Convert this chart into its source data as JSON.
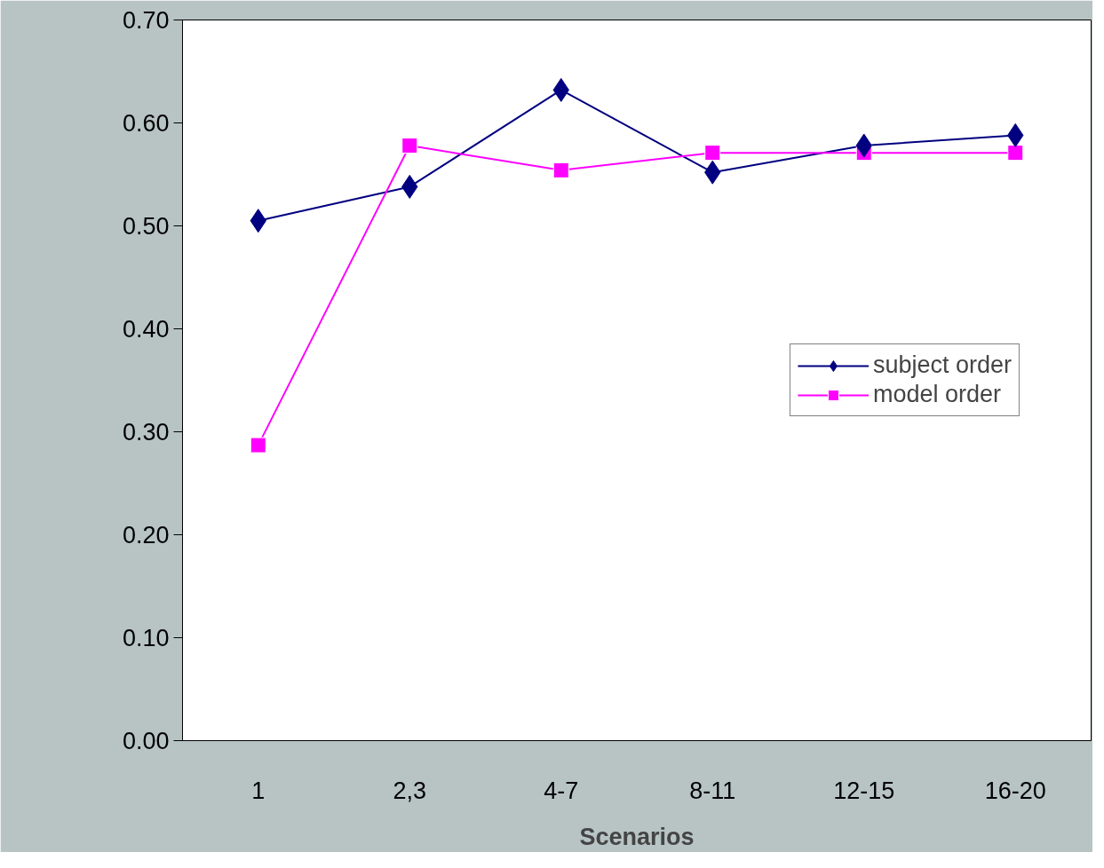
{
  "chart_data": {
    "type": "line",
    "xlabel": "Scenarios",
    "categories": [
      "1",
      "2,3",
      "4-7",
      "8-11",
      "12-15",
      "16-20"
    ],
    "series": [
      {
        "name": "subject order",
        "color": "#000080",
        "marker": "diamond",
        "values": [
          0.505,
          0.538,
          0.632,
          0.552,
          0.578,
          0.588
        ]
      },
      {
        "name": "model order",
        "color": "#ff00ff",
        "marker": "square",
        "values": [
          0.287,
          0.578,
          0.554,
          0.571,
          0.571,
          0.571
        ]
      }
    ],
    "ylim": [
      0,
      0.7
    ],
    "yticks": [
      {
        "value": 0,
        "label": "0.00"
      },
      {
        "value": 0.1,
        "label": "0.10"
      },
      {
        "value": 0.2,
        "label": "0.20"
      },
      {
        "value": 0.3,
        "label": "0.30"
      },
      {
        "value": 0.4,
        "label": "0.40"
      },
      {
        "value": 0.5,
        "label": "0.50"
      },
      {
        "value": 0.6,
        "label": "0.60"
      },
      {
        "value": 0.7,
        "label": "0.70"
      }
    ],
    "grid": false,
    "legend": "right",
    "line_style": "solid"
  }
}
